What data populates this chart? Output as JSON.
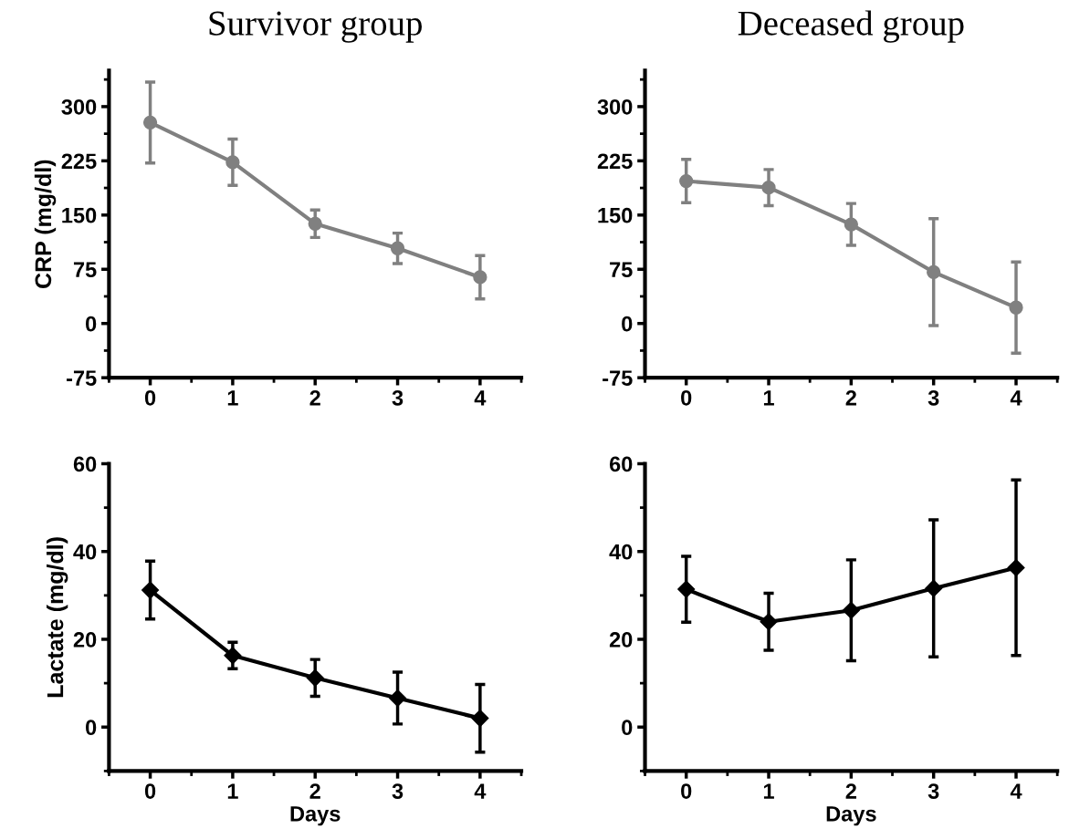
{
  "chart_data": [
    {
      "type": "line",
      "title": "Survivor group",
      "ylabel": "CRP (mg/dl)",
      "x": [
        0,
        1,
        2,
        3,
        4
      ],
      "xlim": [
        -0.5,
        4.5
      ],
      "xticks": [
        0,
        1,
        2,
        3,
        4
      ],
      "ylim": [
        -75,
        350
      ],
      "yticks": [
        -75,
        0,
        75,
        150,
        225,
        300
      ],
      "marker": "circle",
      "line_style": "solid",
      "grid": false,
      "legend": false,
      "series": [
        {
          "color": "#808080",
          "values": [
            278,
            223,
            138,
            104,
            64
          ],
          "errors": [
            56,
            32,
            19,
            21,
            30
          ]
        }
      ]
    },
    {
      "type": "line",
      "title": "Deceased group",
      "x": [
        0,
        1,
        2,
        3,
        4
      ],
      "xlim": [
        -0.5,
        4.5
      ],
      "xticks": [
        0,
        1,
        2,
        3,
        4
      ],
      "ylim": [
        -75,
        350
      ],
      "yticks": [
        -75,
        0,
        75,
        150,
        225,
        300
      ],
      "marker": "circle",
      "line_style": "solid",
      "grid": false,
      "legend": false,
      "series": [
        {
          "color": "#808080",
          "values": [
            197,
            188,
            137,
            71,
            22
          ],
          "errors": [
            30,
            25,
            29,
            74,
            63
          ]
        }
      ]
    },
    {
      "type": "line",
      "ylabel": "Lactate (mg/dl)",
      "xlabel": "Days",
      "x": [
        0,
        1,
        2,
        3,
        4
      ],
      "xlim": [
        -0.5,
        4.5
      ],
      "xticks": [
        0,
        1,
        2,
        3,
        4
      ],
      "ylim": [
        -10,
        60
      ],
      "yticks": [
        0,
        20,
        40,
        60
      ],
      "marker": "diamond",
      "line_style": "solid",
      "grid": false,
      "legend": false,
      "series": [
        {
          "color": "#000000",
          "values": [
            31.2,
            16.3,
            11.2,
            6.6,
            2.0
          ],
          "errors": [
            6.6,
            3.0,
            4.2,
            5.9,
            7.7
          ]
        }
      ]
    },
    {
      "type": "line",
      "xlabel": "Days",
      "x": [
        0,
        1,
        2,
        3,
        4
      ],
      "xlim": [
        -0.5,
        4.5
      ],
      "xticks": [
        0,
        1,
        2,
        3,
        4
      ],
      "ylim": [
        -10,
        60
      ],
      "yticks": [
        0,
        20,
        40,
        60
      ],
      "marker": "diamond",
      "line_style": "solid",
      "grid": false,
      "legend": false,
      "series": [
        {
          "color": "#000000",
          "values": [
            31.4,
            24.0,
            26.6,
            31.6,
            36.3
          ],
          "errors": [
            7.5,
            6.5,
            11.5,
            15.6,
            20.0
          ]
        }
      ]
    }
  ]
}
